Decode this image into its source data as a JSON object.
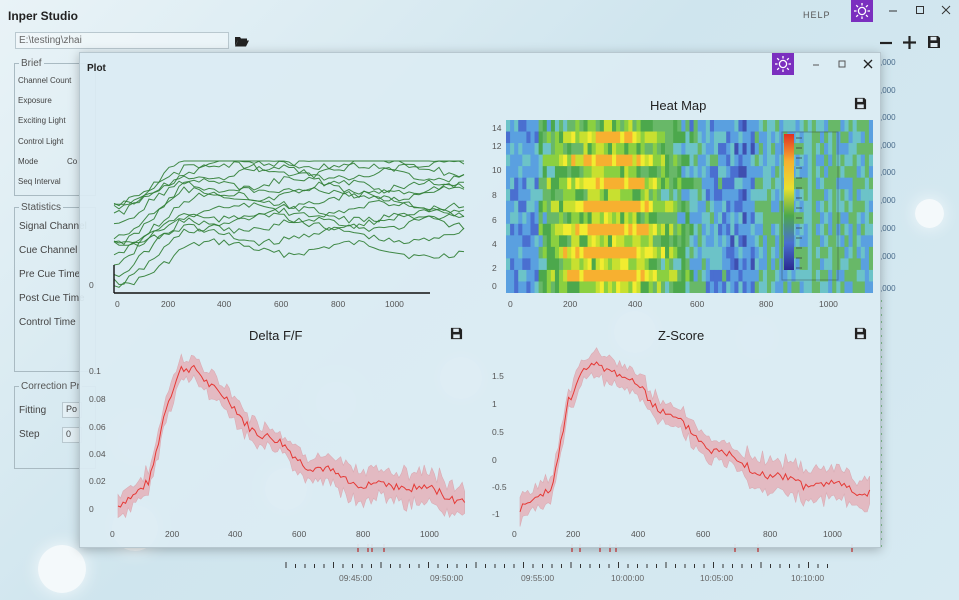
{
  "app": {
    "title": "Inper Studio",
    "help": "HELP"
  },
  "path": {
    "value": "E:\\testing\\zhai"
  },
  "brief": {
    "legend": "Brief",
    "items": [
      "Channel Count",
      "Exposure",
      "Exciting Light",
      "Control Light",
      "Mode",
      "Seq Interval"
    ],
    "extra": "Co"
  },
  "statistics": {
    "legend": "Statistics",
    "items": [
      "Signal Channel",
      "Cue Channel",
      "Pre Cue Time",
      "Post Cue Time",
      "Control Time"
    ]
  },
  "correction": {
    "legend": "Correction Pr",
    "fitting_label": "Fitting",
    "fitting_value": "Po",
    "step_label": "Step",
    "step_value": "0"
  },
  "plot_window": {
    "title": "Plot"
  },
  "timeline": {
    "labels": [
      "09:45:00",
      "09:50:00",
      "09:55:00",
      "10:00:00",
      "10:05:00",
      "10:10:00"
    ]
  },
  "colors": {
    "accent": "#7b2fbf",
    "trace": "#2e7d32",
    "mean": "#e53935",
    "band": "#e8a0a8"
  },
  "charts": {
    "traces": {
      "yticks": [
        "0"
      ],
      "xticks": [
        "0",
        "200",
        "400",
        "600",
        "800",
        "1000"
      ]
    },
    "heatmap": {
      "title": "Heat Map",
      "yticks": [
        "14",
        "12",
        "10",
        "8",
        "6",
        "4",
        "2",
        "0"
      ],
      "xticks": [
        "0",
        "200",
        "400",
        "600",
        "800",
        "1000"
      ]
    },
    "delta": {
      "title": "Delta F/F",
      "yticks": [
        "0.1",
        "0.08",
        "0.06",
        "0.04",
        "0.02",
        "0"
      ],
      "xticks": [
        "0",
        "200",
        "400",
        "600",
        "800",
        "1000"
      ]
    },
    "zscore": {
      "title": "Z-Score",
      "yticks": [
        "1.5",
        "1",
        "0.5",
        "0",
        "-0.5",
        "-1"
      ],
      "xticks": [
        "0",
        "200",
        "400",
        "600",
        "800",
        "1000"
      ]
    }
  },
  "chart_data": [
    {
      "type": "line",
      "title": "",
      "series_count": 14,
      "xlim": [
        0,
        1100
      ]
    },
    {
      "type": "heatmap",
      "title": "Heat Map",
      "rows": 15,
      "xlim": [
        0,
        1100
      ],
      "ylim": [
        0,
        14
      ]
    },
    {
      "type": "area",
      "title": "Delta F/F",
      "x": [
        0,
        50,
        100,
        150,
        200,
        250,
        300,
        400,
        500,
        600,
        700,
        800,
        900,
        1000,
        1100
      ],
      "mean": [
        0,
        0.005,
        0.02,
        0.07,
        0.095,
        0.098,
        0.085,
        0.06,
        0.045,
        0.03,
        0.02,
        0.015,
        0.015,
        0.01,
        0.005
      ],
      "ylim": [
        -0.01,
        0.11
      ]
    },
    {
      "type": "area",
      "title": "Z-Score",
      "x": [
        0,
        50,
        100,
        150,
        200,
        250,
        300,
        400,
        500,
        600,
        700,
        800,
        900,
        1000,
        1100
      ],
      "mean": [
        -1,
        -0.9,
        -0.6,
        0.9,
        1.4,
        1.6,
        1.45,
        1.0,
        0.5,
        0.1,
        -0.2,
        -0.45,
        -0.55,
        -0.6,
        -0.7
      ],
      "ylim": [
        -1.2,
        1.8
      ]
    }
  ]
}
